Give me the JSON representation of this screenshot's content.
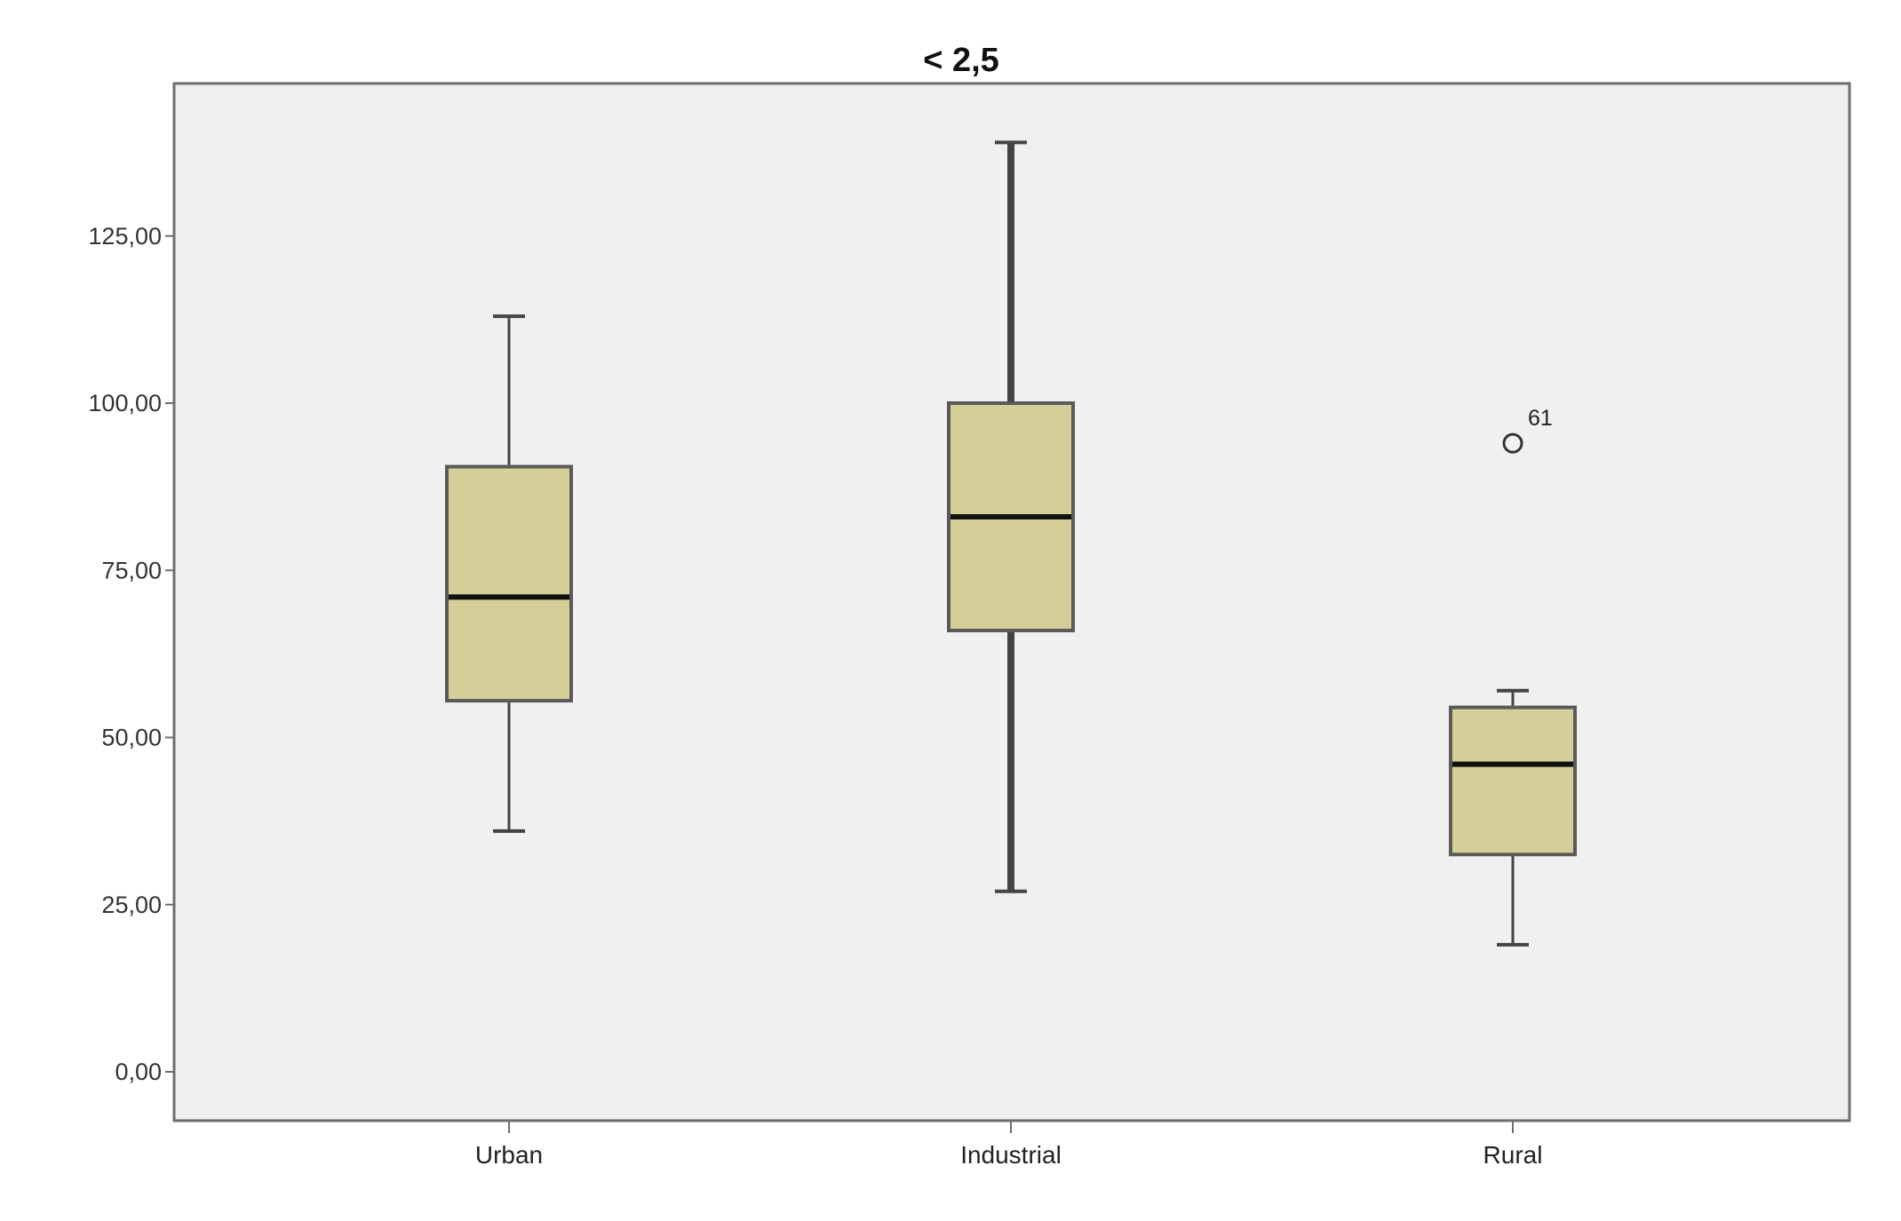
{
  "chart_data": {
    "type": "box",
    "title": "< 2,5",
    "xlabel": "",
    "ylabel": "",
    "ylim": [
      -7.5,
      147.5
    ],
    "yticks": [
      0,
      25,
      50,
      75,
      100,
      125
    ],
    "ytick_labels": [
      "0,00",
      "25,00",
      "50,00",
      "75,00",
      "100,00",
      "125,00"
    ],
    "categories": [
      "Urban",
      "Industrial",
      "Rural"
    ],
    "series": [
      {
        "category": "Urban",
        "min": 36.0,
        "q1": 55.5,
        "median": 71.0,
        "q3": 90.5,
        "max": 113.0,
        "outliers": []
      },
      {
        "category": "Industrial",
        "min": 27.0,
        "q1": 66.0,
        "median": 83.0,
        "q3": 100.0,
        "max": 139.0,
        "outliers": []
      },
      {
        "category": "Rural",
        "min": 19.0,
        "q1": 32.5,
        "median": 46.0,
        "q3": 54.5,
        "max": 57.0,
        "outliers": [
          {
            "value": 94.0,
            "label": "61"
          }
        ]
      }
    ],
    "grid": false,
    "colors": {
      "plot_background": "#f0f0f0",
      "frame": "#6e6e6e",
      "box_fill": "#d4cf98",
      "box_stroke": "#5a5a5a",
      "median": "#111111",
      "whisker": "#444444"
    }
  }
}
